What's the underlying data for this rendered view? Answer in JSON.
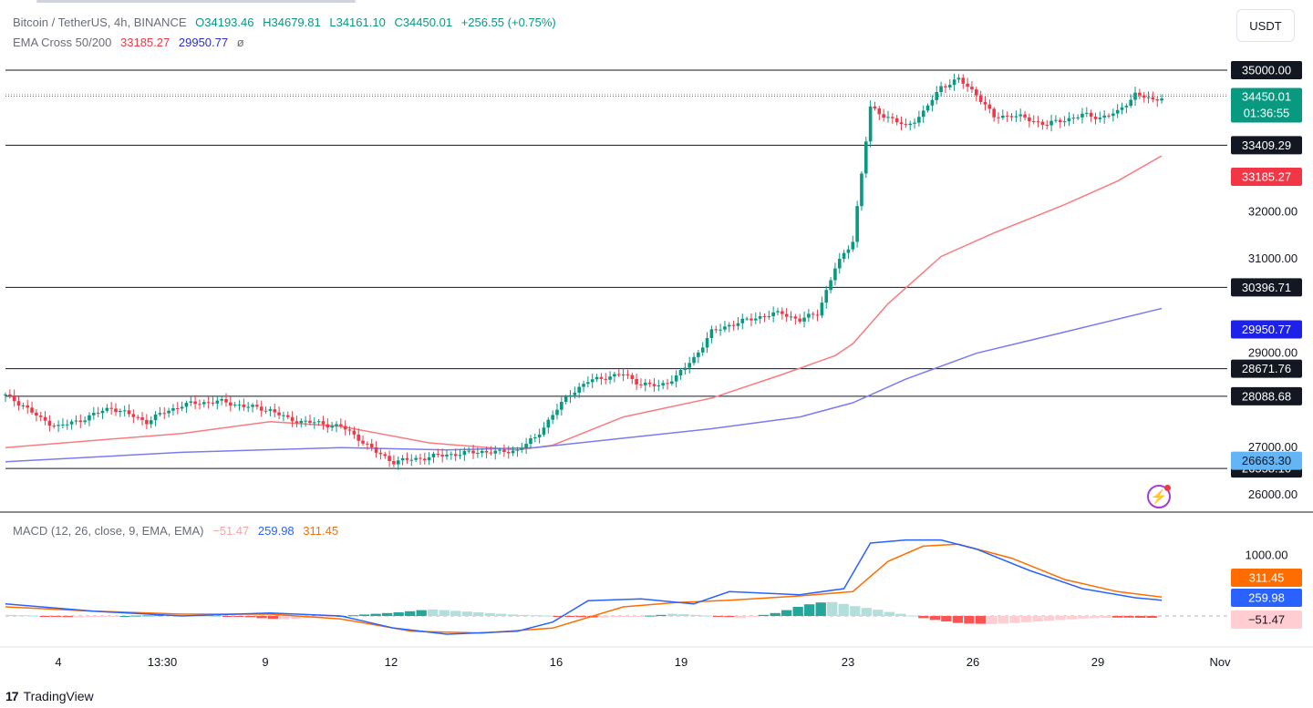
{
  "legend": {
    "symbol": "Bitcoin / TetherUS, 4h, BINANCE",
    "open": "O34193.46",
    "high": "H34679.81",
    "low": "L34161.10",
    "close": "C34450.01",
    "change": "+256.55 (+0.75%)",
    "ema_label": "EMA Cross 50/200",
    "ema50": "33185.27",
    "ema200": "29950.77",
    "ema_extra": "ø",
    "macd_label": "MACD (12, 26, close, 9, EMA, EMA)",
    "macd_hist": "−51.47",
    "macd_line": "259.98",
    "macd_signal": "311.45"
  },
  "currency_button": "USDT",
  "brand": "TradingView",
  "brand_logo": "17",
  "colors": {
    "up": "#089981",
    "down": "#f23645",
    "ema50": "#f77c80",
    "ema200": "#7b7bf0",
    "macd": "#2962ff",
    "signal": "#ff6d00"
  },
  "chart_data": [
    {
      "type": "candlestick",
      "y_range": [
        25800,
        35500
      ],
      "y_ticks": [
        "32000.00",
        "31000.00",
        "29000.00",
        "27000.00",
        "26000.00"
      ],
      "x_ticks": [
        "4",
        "13:30",
        "9",
        "12",
        "16",
        "19",
        "23",
        "26",
        "29",
        "Nov"
      ],
      "horizontal_levels": [
        35000.0,
        33409.29,
        30396.71,
        28671.76,
        28088.68,
        26558.1
      ],
      "level_labels": [
        "35000.00",
        "33409.29",
        "30396.71",
        "28671.76",
        "28088.68",
        "26558.10"
      ],
      "last_price": "34450.01",
      "countdown": "01:36:55",
      "ema50_label": "33185.27",
      "ema200_label": "29950.77",
      "extra_label": "26663.30",
      "close_path": [
        [
          0,
          28100
        ],
        [
          4,
          27900
        ],
        [
          8,
          27600
        ],
        [
          12,
          27450
        ],
        [
          16,
          27550
        ],
        [
          20,
          27700
        ],
        [
          24,
          27850
        ],
        [
          28,
          27700
        ],
        [
          32,
          27550
        ],
        [
          36,
          27750
        ],
        [
          40,
          27900
        ],
        [
          44,
          27950
        ],
        [
          48,
          27980
        ],
        [
          52,
          27920
        ],
        [
          56,
          27850
        ],
        [
          60,
          27800
        ],
        [
          64,
          27600
        ],
        [
          68,
          27550
        ],
        [
          72,
          27500
        ],
        [
          76,
          27450
        ],
        [
          80,
          27200
        ],
        [
          84,
          26900
        ],
        [
          88,
          26700
        ],
        [
          92,
          26750
        ],
        [
          96,
          26800
        ],
        [
          100,
          26850
        ],
        [
          104,
          26880
        ],
        [
          108,
          26920
        ],
        [
          112,
          26900
        ],
        [
          116,
          26950
        ],
        [
          120,
          27200
        ],
        [
          124,
          27700
        ],
        [
          128,
          28150
        ],
        [
          132,
          28400
        ],
        [
          136,
          28500
        ],
        [
          140,
          28550
        ],
        [
          144,
          28350
        ],
        [
          148,
          28300
        ],
        [
          152,
          28500
        ],
        [
          156,
          28900
        ],
        [
          160,
          29450
        ],
        [
          164,
          29600
        ],
        [
          168,
          29700
        ],
        [
          172,
          29800
        ],
        [
          176,
          29850
        ],
        [
          180,
          29700
        ],
        [
          184,
          29850
        ],
        [
          188,
          30800
        ],
        [
          192,
          31400
        ],
        [
          196,
          34200
        ],
        [
          200,
          34000
        ],
        [
          204,
          33800
        ],
        [
          208,
          34100
        ],
        [
          212,
          34650
        ],
        [
          216,
          34800
        ],
        [
          220,
          34500
        ],
        [
          224,
          34000
        ],
        [
          228,
          34050
        ],
        [
          232,
          33950
        ],
        [
          236,
          33850
        ],
        [
          240,
          33950
        ],
        [
          244,
          34050
        ],
        [
          248,
          34000
        ],
        [
          252,
          34100
        ],
        [
          256,
          34500
        ],
        [
          260,
          34350
        ],
        [
          262,
          34450
        ]
      ],
      "ema50_path": [
        [
          0,
          27000
        ],
        [
          40,
          27300
        ],
        [
          60,
          27550
        ],
        [
          76,
          27450
        ],
        [
          96,
          27100
        ],
        [
          116,
          26950
        ],
        [
          124,
          27050
        ],
        [
          140,
          27650
        ],
        [
          160,
          28050
        ],
        [
          176,
          28550
        ],
        [
          188,
          28950
        ],
        [
          192,
          29200
        ],
        [
          200,
          30050
        ],
        [
          212,
          31050
        ],
        [
          224,
          31550
        ],
        [
          240,
          32150
        ],
        [
          252,
          32650
        ],
        [
          262,
          33185
        ]
      ],
      "ema200_path": [
        [
          0,
          26700
        ],
        [
          40,
          26900
        ],
        [
          76,
          27000
        ],
        [
          100,
          26950
        ],
        [
          120,
          27000
        ],
        [
          140,
          27200
        ],
        [
          160,
          27400
        ],
        [
          180,
          27650
        ],
        [
          192,
          27950
        ],
        [
          204,
          28450
        ],
        [
          220,
          29000
        ],
        [
          240,
          29450
        ],
        [
          262,
          29950
        ]
      ]
    },
    {
      "type": "macd",
      "y_ticks": [
        "1000.00"
      ],
      "y_range": [
        -500,
        1500
      ],
      "labels": {
        "signal": "311.45",
        "macd": "259.98",
        "hist": "−51.47"
      },
      "macd_path": [
        [
          0,
          200
        ],
        [
          20,
          80
        ],
        [
          40,
          0
        ],
        [
          60,
          50
        ],
        [
          76,
          0
        ],
        [
          88,
          -200
        ],
        [
          100,
          -300
        ],
        [
          116,
          -250
        ],
        [
          124,
          -100
        ],
        [
          132,
          250
        ],
        [
          144,
          280
        ],
        [
          156,
          200
        ],
        [
          164,
          400
        ],
        [
          180,
          350
        ],
        [
          190,
          450
        ],
        [
          196,
          1200
        ],
        [
          204,
          1250
        ],
        [
          212,
          1250
        ],
        [
          220,
          1100
        ],
        [
          232,
          750
        ],
        [
          244,
          450
        ],
        [
          256,
          300
        ],
        [
          262,
          260
        ]
      ],
      "signal_path": [
        [
          0,
          150
        ],
        [
          20,
          80
        ],
        [
          40,
          30
        ],
        [
          60,
          30
        ],
        [
          76,
          -50
        ],
        [
          92,
          -250
        ],
        [
          108,
          -280
        ],
        [
          124,
          -200
        ],
        [
          140,
          150
        ],
        [
          152,
          220
        ],
        [
          164,
          260
        ],
        [
          180,
          330
        ],
        [
          192,
          400
        ],
        [
          200,
          900
        ],
        [
          208,
          1150
        ],
        [
          216,
          1180
        ],
        [
          228,
          950
        ],
        [
          240,
          600
        ],
        [
          252,
          400
        ],
        [
          262,
          311
        ]
      ],
      "hist_values": [
        30,
        20,
        10,
        -10,
        -20,
        -30,
        -40,
        -30,
        -20,
        -10,
        0,
        10,
        15,
        20,
        25,
        20,
        15,
        10,
        0,
        -10,
        -20,
        -35,
        -60,
        -80,
        -90,
        -80,
        -60,
        -40,
        -20,
        0,
        20,
        40,
        60,
        80,
        100,
        130,
        160,
        180,
        160,
        140,
        120,
        100,
        80,
        60,
        40,
        30,
        20,
        10,
        -10,
        -20,
        -30,
        -40,
        -40,
        -30,
        -20,
        -10,
        10,
        30,
        60,
        50,
        30,
        10,
        -10,
        -30,
        -60,
        -30,
        30,
        80,
        160,
        250,
        320,
        370,
        380,
        330,
        270,
        220,
        170,
        110,
        60,
        10,
        -60,
        -110,
        -150,
        -190,
        -210,
        -215,
        -220,
        -210,
        -195,
        -170,
        -150,
        -130,
        -110,
        -90,
        -70,
        -60,
        -50,
        -45,
        -45,
        -50,
        -51
      ]
    }
  ]
}
